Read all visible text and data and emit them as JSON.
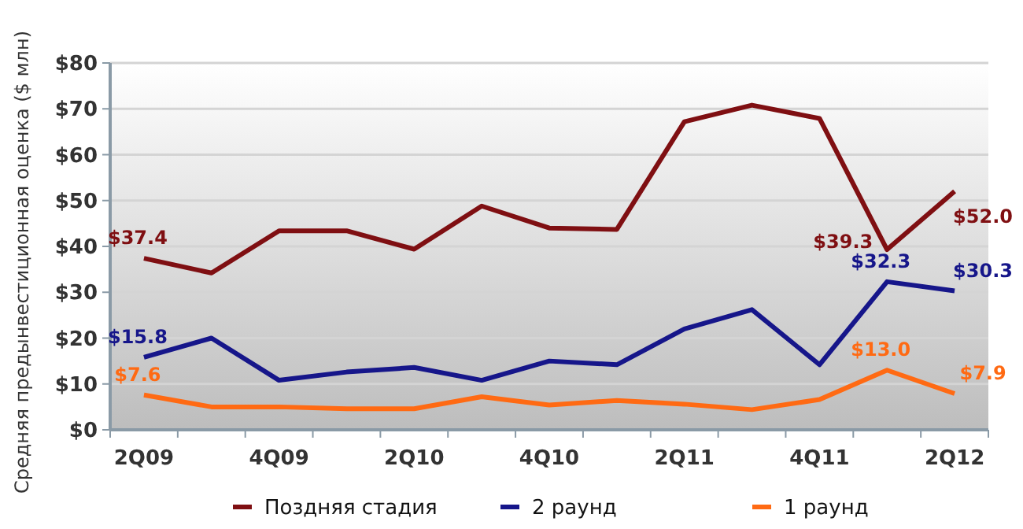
{
  "chart_data": {
    "type": "line",
    "ylabel": "Средняя предынвестиционная оценка ($ млн)",
    "categories": [
      "2Q09",
      null,
      "4Q09",
      null,
      "2Q10",
      null,
      "4Q10",
      null,
      "2Q11",
      null,
      "4Q11",
      null,
      "2Q12"
    ],
    "ylim": [
      0,
      80
    ],
    "yticks": [
      {
        "value": 0,
        "label": "$0"
      },
      {
        "value": 10,
        "label": "$10"
      },
      {
        "value": 20,
        "label": "$20"
      },
      {
        "value": 30,
        "label": "$30"
      },
      {
        "value": 40,
        "label": "$40"
      },
      {
        "value": 50,
        "label": "$50"
      },
      {
        "value": 60,
        "label": "$60"
      },
      {
        "value": 70,
        "label": "$70"
      },
      {
        "value": 80,
        "label": "$80"
      }
    ],
    "grid": "y",
    "legend": "bottom",
    "marker": "none",
    "line_style": "solid",
    "series": [
      {
        "name": "Поздняя стадия",
        "color": "#7f0f12",
        "values": [
          37.4,
          34.2,
          43.4,
          43.4,
          39.4,
          48.8,
          44.0,
          43.7,
          67.2,
          70.8,
          67.9,
          39.3,
          52.0
        ],
        "value_labels": [
          "$37.4",
          null,
          null,
          null,
          null,
          null,
          null,
          null,
          null,
          null,
          null,
          "$39.3",
          "$52.0"
        ]
      },
      {
        "name": "2 раунд",
        "color": "#16168a",
        "values": [
          15.8,
          20.0,
          10.8,
          12.6,
          13.6,
          10.8,
          15.0,
          14.2,
          22.0,
          26.2,
          14.2,
          32.3,
          30.3
        ],
        "value_labels": [
          "$15.8",
          null,
          null,
          null,
          null,
          null,
          null,
          null,
          null,
          null,
          null,
          "$32.3",
          "$30.3"
        ]
      },
      {
        "name": "1 раунд",
        "color": "#ff6a13",
        "values": [
          7.6,
          5.0,
          5.0,
          4.6,
          4.6,
          7.2,
          5.4,
          6.4,
          5.6,
          4.4,
          6.6,
          13.0,
          7.9
        ],
        "value_labels": [
          "$7.6",
          null,
          null,
          null,
          null,
          null,
          null,
          null,
          null,
          null,
          null,
          "$13.0",
          "$7.9"
        ]
      }
    ]
  }
}
